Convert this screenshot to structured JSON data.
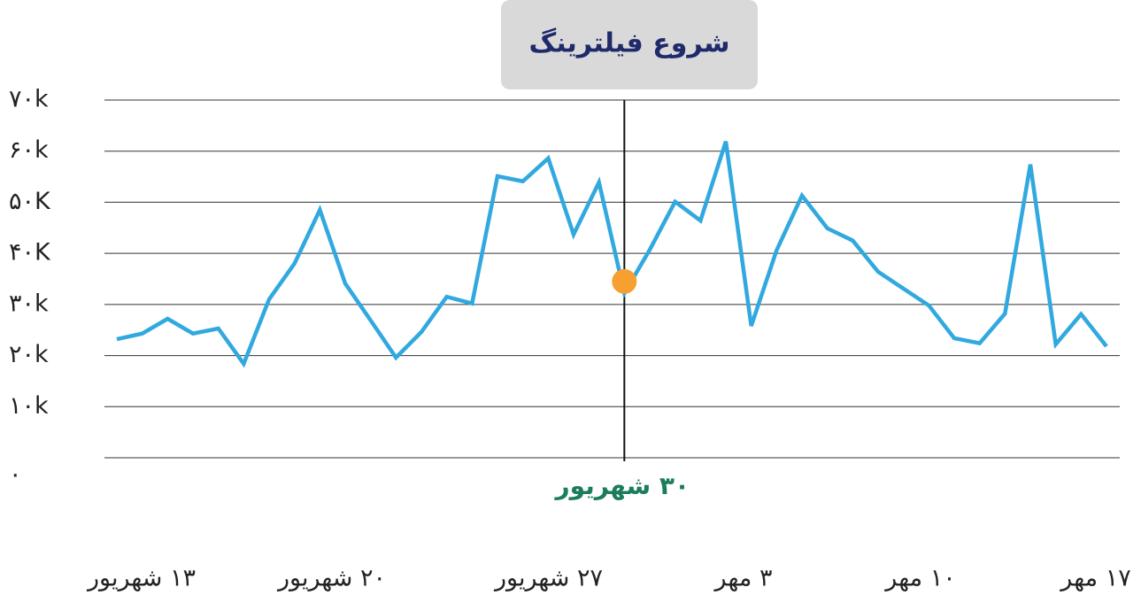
{
  "chart_data": {
    "type": "line",
    "title": "شروع فیلترینگ",
    "categories": [
      null,
      null,
      null,
      null,
      null,
      null,
      null,
      null,
      null,
      null,
      null,
      null,
      null,
      null,
      null,
      null,
      null,
      null,
      null,
      null,
      "۳۰ شهریور",
      null,
      null,
      null,
      null,
      null,
      null,
      null,
      null,
      null,
      null,
      null,
      null,
      null,
      null,
      null,
      null,
      null,
      null,
      null
    ],
    "series": [
      {
        "name": null,
        "color": "#31a9df",
        "values": [
          23200,
          24300,
          27200,
          24300,
          25300,
          18400,
          31000,
          38000,
          48500,
          34100,
          26900,
          19600,
          24600,
          31500,
          30200,
          55100,
          54100,
          58600,
          43700,
          53900,
          32200,
          40700,
          50100,
          46400,
          61900,
          25800,
          40600,
          51300,
          44900,
          42500,
          36400,
          33100,
          29800,
          23400,
          22400,
          28200,
          57400,
          22200,
          28100,
          21800
        ]
      }
    ],
    "highlight": {
      "value": 34500,
      "color": "#f5a031"
    },
    "x_labels": [
      "۱۳ شهریور",
      "۲۰ شهریور",
      "۲۷ شهریور",
      "۳ مهر",
      "۱۰ مهر",
      "۱۷ مهر"
    ],
    "ylim": [
      0,
      70000
    ],
    "yticks": [
      {
        "value": 0,
        "label": "۰"
      },
      {
        "value": 10000,
        "label": "۱۰k"
      },
      {
        "value": 20000,
        "label": "۲۰k"
      },
      {
        "value": 30000,
        "label": "۳۰k"
      },
      {
        "value": 40000,
        "label": "۴۰K"
      },
      {
        "value": 50000,
        "label": "۵۰K"
      },
      {
        "value": 60000,
        "label": "۶۰k"
      },
      {
        "value": 70000,
        "label": "۷۰k"
      }
    ],
    "grid": true
  }
}
